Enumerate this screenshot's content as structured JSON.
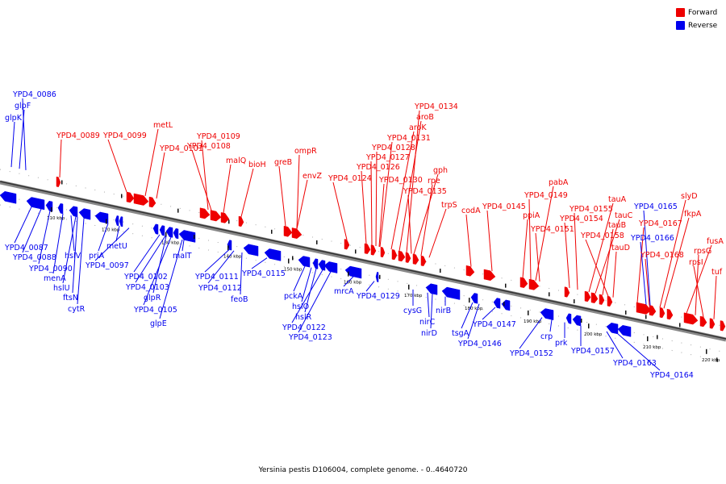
{
  "legend": {
    "forward_label": "Forward",
    "reverse_label": "Reverse",
    "forward_color": "#ee0000",
    "reverse_color": "#0000ee"
  },
  "caption": "Yersinia pestis D106004, complete genome. - 0..4640720",
  "scale_ticks": [
    "110 kbp",
    "120 kbp",
    "130 kbp",
    "140 kbp",
    "150 kbp",
    "160 kbp",
    "170 kbp",
    "180 kbp",
    "190 kbp",
    "200 kbp",
    "210 kbp",
    "220 kbp"
  ],
  "forward_genes": [
    "YPD4_0089",
    "YPD4_0099",
    "metL",
    "YPD4_0101",
    "YPD4_0109",
    "YPD4_0108",
    "malQ",
    "bioH",
    "greB",
    "ompR",
    "envZ",
    "YPD4_0124",
    "YPD4_0126",
    "YPD4_0127",
    "YPD4_0128",
    "YPD4_0130",
    "YPD4_0131",
    "aroK",
    "aroB",
    "YPD4_0134",
    "gph",
    "rpe",
    "YPD4_0135",
    "trpS",
    "codA",
    "YPD4_0145",
    "ppiA",
    "YPD4_0149",
    "pabA",
    "YPD4_0151",
    "YPD4_0154",
    "YPD4_0155",
    "tauA",
    "tauC",
    "tauB",
    "tauD",
    "YPD4_0158",
    "YPD4_0167",
    "YPD4_0168",
    "slyD",
    "fkpA",
    "fusA",
    "rpsG",
    "rpsI",
    "tuf"
  ],
  "reverse_genes": [
    "YPD4_0086",
    "glpF",
    "glpK",
    "YPD4_0087",
    "YPD4_0088",
    "YPD4_0090",
    "menA",
    "hslU",
    "hslV",
    "ftsN",
    "cytR",
    "priA",
    "metU",
    "YPD4_0097",
    "YPD4_0102",
    "YPD4_0103",
    "glpR",
    "YPD4_0105",
    "glpE",
    "malT",
    "YPD4_0111",
    "YPD4_0112",
    "feoB",
    "YPD4_0115",
    "pckA",
    "hslO",
    "hslR",
    "YPD4_0122",
    "YPD4_0123",
    "mrcA",
    "YPD4_0129",
    "cysG",
    "nirC",
    "nirD",
    "nirB",
    "tsgA",
    "YPD4_0146",
    "YPD4_0147",
    "YPD4_0152",
    "crp",
    "prk",
    "YPD4_0157",
    "YPD4_0163",
    "YPD4_0164",
    "YPD4_0165",
    "YPD4_0166"
  ]
}
